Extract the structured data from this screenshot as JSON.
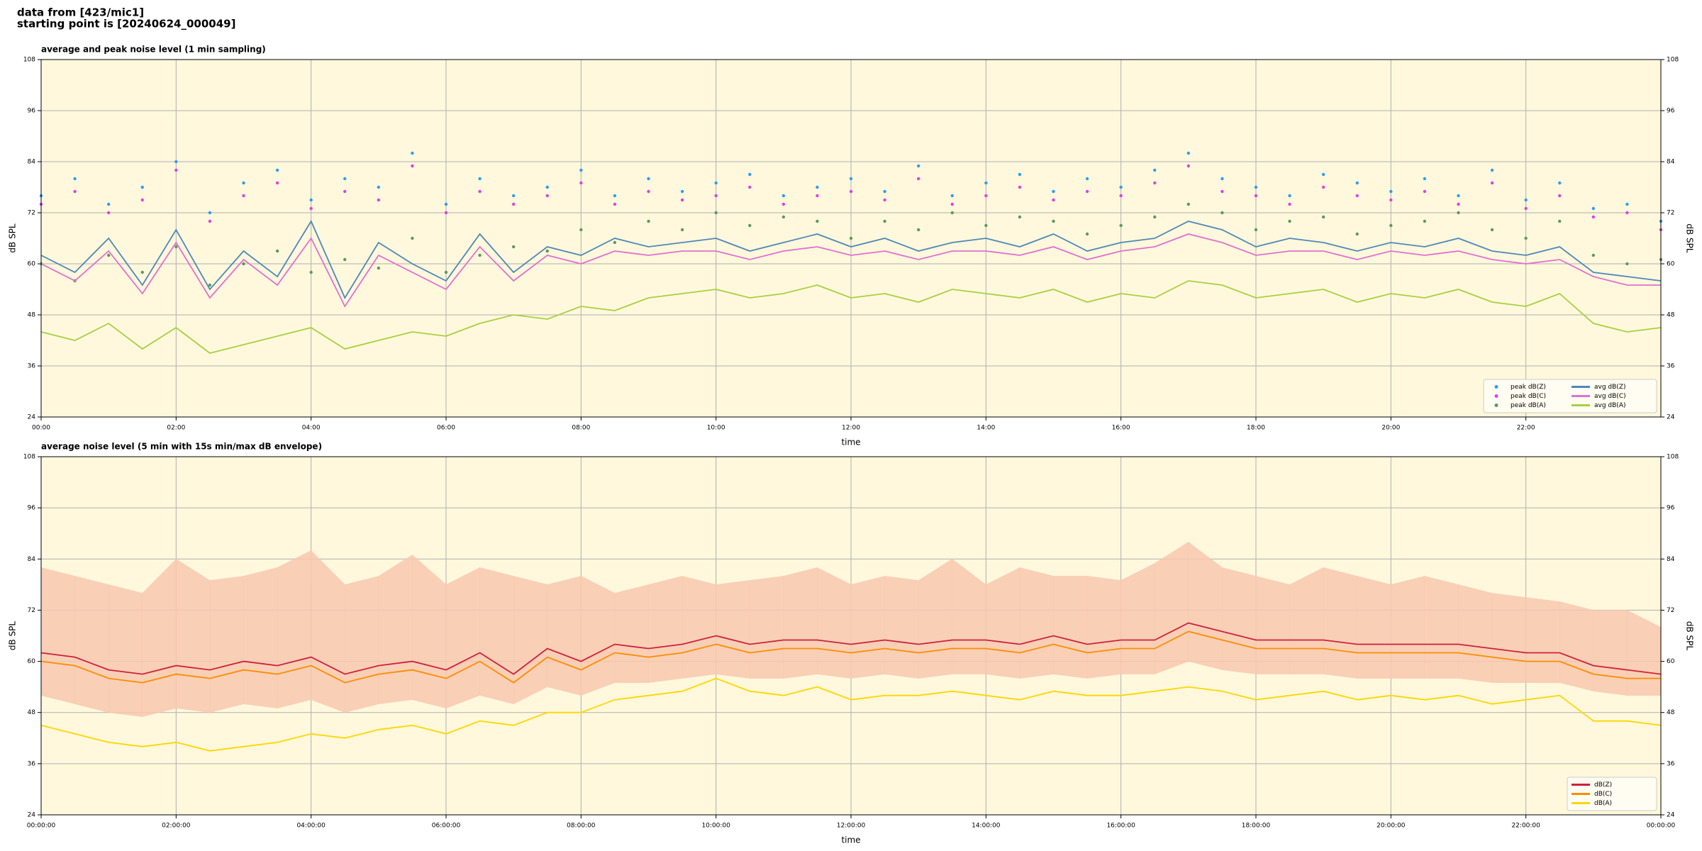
{
  "header": {
    "lines": [
      "data from [423/mic1]",
      "starting point is [20240624_000049]"
    ]
  },
  "chart_data": [
    {
      "type": "line",
      "title": "average and peak noise level (1 min sampling)",
      "xlabel": "time",
      "ylabel": "dB SPL",
      "xlim": [
        0,
        24
      ],
      "ylim": [
        24,
        108
      ],
      "grid": true,
      "legend": "lower right",
      "legend_columns": 2,
      "background": "#fff8dc",
      "xticks": [
        {
          "value": 0,
          "label": "00:00"
        },
        {
          "value": 2,
          "label": "02:00"
        },
        {
          "value": 4,
          "label": "04:00"
        },
        {
          "value": 6,
          "label": "06:00"
        },
        {
          "value": 8,
          "label": "08:00"
        },
        {
          "value": 10,
          "label": "10:00"
        },
        {
          "value": 12,
          "label": "12:00"
        },
        {
          "value": 14,
          "label": "14:00"
        },
        {
          "value": 16,
          "label": "16:00"
        },
        {
          "value": 18,
          "label": "18:00"
        },
        {
          "value": 20,
          "label": "20:00"
        },
        {
          "value": 22,
          "label": "22:00"
        }
      ],
      "yticks": [
        24,
        36,
        48,
        60,
        72,
        84,
        96,
        108
      ],
      "x": [
        0,
        0.5,
        1,
        1.5,
        2,
        2.5,
        3,
        3.5,
        4,
        4.5,
        5,
        5.5,
        6,
        6.5,
        7,
        7.5,
        8,
        8.5,
        9,
        9.5,
        10,
        10.5,
        11,
        11.5,
        12,
        12.5,
        13,
        13.5,
        14,
        14.5,
        15,
        15.5,
        16,
        16.5,
        17,
        17.5,
        18,
        18.5,
        19,
        19.5,
        20,
        20.5,
        21,
        21.5,
        22,
        22.5,
        23,
        23.5,
        24
      ],
      "series": [
        {
          "name": "peak dB(Z)",
          "type": "scatter",
          "color": "#2a9df4",
          "values": [
            76,
            80,
            74,
            78,
            84,
            72,
            79,
            82,
            75,
            80,
            78,
            86,
            74,
            80,
            76,
            78,
            82,
            76,
            80,
            77,
            79,
            81,
            76,
            78,
            80,
            77,
            83,
            76,
            79,
            81,
            77,
            80,
            78,
            82,
            86,
            80,
            78,
            76,
            81,
            79,
            77,
            80,
            76,
            82,
            75,
            79,
            73,
            74,
            70
          ]
        },
        {
          "name": "peak dB(C)",
          "type": "scatter",
          "color": "#e040e0",
          "values": [
            74,
            77,
            72,
            75,
            82,
            70,
            76,
            79,
            73,
            77,
            75,
            83,
            72,
            77,
            74,
            76,
            79,
            74,
            77,
            75,
            76,
            78,
            74,
            76,
            77,
            75,
            80,
            74,
            76,
            78,
            75,
            77,
            76,
            79,
            83,
            77,
            76,
            74,
            78,
            76,
            75,
            77,
            74,
            79,
            73,
            76,
            71,
            72,
            68
          ]
        },
        {
          "name": "peak dB(A)",
          "type": "scatter",
          "color": "#5a9a5a",
          "values": [
            60,
            56,
            62,
            58,
            64,
            55,
            60,
            63,
            58,
            61,
            59,
            66,
            58,
            62,
            64,
            63,
            68,
            65,
            70,
            68,
            72,
            69,
            71,
            70,
            66,
            70,
            68,
            72,
            69,
            71,
            70,
            67,
            69,
            71,
            74,
            72,
            68,
            70,
            71,
            67,
            69,
            70,
            72,
            68,
            66,
            70,
            62,
            60,
            61
          ]
        },
        {
          "name": "avg dB(Z)",
          "type": "line",
          "color": "#4f88b8",
          "values": [
            62,
            58,
            66,
            55,
            68,
            54,
            63,
            57,
            70,
            52,
            65,
            60,
            56,
            67,
            58,
            64,
            62,
            66,
            64,
            65,
            66,
            63,
            65,
            67,
            64,
            66,
            63,
            65,
            66,
            64,
            67,
            63,
            65,
            66,
            70,
            68,
            64,
            66,
            65,
            63,
            65,
            64,
            66,
            63,
            62,
            64,
            58,
            57,
            56
          ]
        },
        {
          "name": "avg dB(C)",
          "type": "line",
          "color": "#e070d0",
          "values": [
            60,
            56,
            63,
            53,
            65,
            52,
            61,
            55,
            66,
            50,
            62,
            58,
            54,
            64,
            56,
            62,
            60,
            63,
            62,
            63,
            63,
            61,
            63,
            64,
            62,
            63,
            61,
            63,
            63,
            62,
            64,
            61,
            63,
            64,
            67,
            65,
            62,
            63,
            63,
            61,
            63,
            62,
            63,
            61,
            60,
            61,
            57,
            55,
            55
          ]
        },
        {
          "name": "avg dB(A)",
          "type": "line",
          "color": "#a8d040",
          "values": [
            44,
            42,
            46,
            40,
            45,
            39,
            41,
            43,
            45,
            40,
            42,
            44,
            43,
            46,
            48,
            47,
            50,
            49,
            52,
            53,
            54,
            52,
            53,
            55,
            52,
            53,
            51,
            54,
            53,
            52,
            54,
            51,
            53,
            52,
            56,
            55,
            52,
            53,
            54,
            51,
            53,
            52,
            54,
            51,
            50,
            53,
            46,
            44,
            45
          ]
        }
      ]
    },
    {
      "type": "line",
      "title": "average noise level (5 min with 15s min/max dB envelope)",
      "xlabel": "time",
      "ylabel": "dB SPL",
      "xlim": [
        0,
        24
      ],
      "ylim": [
        24,
        108
      ],
      "grid": true,
      "legend": "lower right",
      "legend_columns": 1,
      "background": "#fff8dc",
      "xticks": [
        {
          "value": 0,
          "label": "00:00:00"
        },
        {
          "value": 2,
          "label": "02:00:00"
        },
        {
          "value": 4,
          "label": "04:00:00"
        },
        {
          "value": 6,
          "label": "06:00:00"
        },
        {
          "value": 8,
          "label": "08:00:00"
        },
        {
          "value": 10,
          "label": "10:00:00"
        },
        {
          "value": 12,
          "label": "12:00:00"
        },
        {
          "value": 14,
          "label": "14:00:00"
        },
        {
          "value": 16,
          "label": "16:00:00"
        },
        {
          "value": 18,
          "label": "18:00:00"
        },
        {
          "value": 20,
          "label": "20:00:00"
        },
        {
          "value": 22,
          "label": "22:00:00"
        },
        {
          "value": 24,
          "label": "00:00:00"
        }
      ],
      "yticks": [
        24,
        36,
        48,
        60,
        72,
        84,
        96,
        108
      ],
      "x": [
        0,
        0.5,
        1,
        1.5,
        2,
        2.5,
        3,
        3.5,
        4,
        4.5,
        5,
        5.5,
        6,
        6.5,
        7,
        7.5,
        8,
        8.5,
        9,
        9.5,
        10,
        10.5,
        11,
        11.5,
        12,
        12.5,
        13,
        13.5,
        14,
        14.5,
        15,
        15.5,
        16,
        16.5,
        17,
        17.5,
        18,
        18.5,
        19,
        19.5,
        20,
        20.5,
        21,
        21.5,
        22,
        22.5,
        23,
        23.5,
        24
      ],
      "envelope": {
        "color": "#f8c8b0",
        "low": [
          52,
          50,
          48,
          47,
          49,
          48,
          50,
          49,
          51,
          48,
          50,
          51,
          49,
          52,
          50,
          54,
          52,
          55,
          55,
          56,
          57,
          56,
          56,
          57,
          56,
          57,
          56,
          57,
          57,
          56,
          57,
          56,
          57,
          57,
          60,
          58,
          57,
          57,
          57,
          56,
          56,
          56,
          56,
          55,
          55,
          55,
          53,
          52,
          52
        ],
        "high": [
          82,
          80,
          78,
          76,
          84,
          79,
          80,
          82,
          86,
          78,
          80,
          85,
          78,
          82,
          80,
          78,
          80,
          76,
          78,
          80,
          78,
          79,
          80,
          82,
          78,
          80,
          79,
          84,
          78,
          82,
          80,
          80,
          79,
          83,
          88,
          82,
          80,
          78,
          82,
          80,
          78,
          80,
          78,
          76,
          75,
          74,
          72,
          72,
          68
        ]
      },
      "series": [
        {
          "name": "dB(Z)",
          "type": "line",
          "color": "#d0203a",
          "values": [
            62,
            61,
            58,
            57,
            59,
            58,
            60,
            59,
            61,
            57,
            59,
            60,
            58,
            62,
            57,
            63,
            60,
            64,
            63,
            64,
            66,
            64,
            65,
            65,
            64,
            65,
            64,
            65,
            65,
            64,
            66,
            64,
            65,
            65,
            69,
            67,
            65,
            65,
            65,
            64,
            64,
            64,
            64,
            63,
            62,
            62,
            59,
            58,
            57
          ]
        },
        {
          "name": "dB(C)",
          "type": "line",
          "color": "#ff8c00",
          "values": [
            60,
            59,
            56,
            55,
            57,
            56,
            58,
            57,
            59,
            55,
            57,
            58,
            56,
            60,
            55,
            61,
            58,
            62,
            61,
            62,
            64,
            62,
            63,
            63,
            62,
            63,
            62,
            63,
            63,
            62,
            64,
            62,
            63,
            63,
            67,
            65,
            63,
            63,
            63,
            62,
            62,
            62,
            62,
            61,
            60,
            60,
            57,
            56,
            56
          ]
        },
        {
          "name": "dB(A)",
          "type": "line",
          "color": "#ffd700",
          "values": [
            45,
            43,
            41,
            40,
            41,
            39,
            40,
            41,
            43,
            42,
            44,
            45,
            43,
            46,
            45,
            48,
            48,
            51,
            52,
            53,
            56,
            53,
            52,
            54,
            51,
            52,
            52,
            53,
            52,
            51,
            53,
            52,
            52,
            53,
            54,
            53,
            51,
            52,
            53,
            51,
            52,
            51,
            52,
            50,
            51,
            52,
            46,
            46,
            45
          ]
        }
      ]
    }
  ]
}
